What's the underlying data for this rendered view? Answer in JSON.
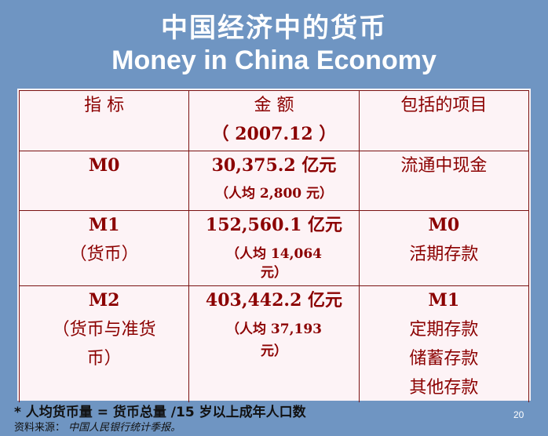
{
  "title_cn": "中国经济中的货币",
  "title_en": "Money in China Economy",
  "table": {
    "header": {
      "col1": "指  标",
      "col2_line1": "金  额",
      "col2_line2": "（ 2007.12 ）",
      "col3": "包括的项目"
    },
    "rows": [
      {
        "indicator": "M0",
        "indicator_sub": "",
        "amount": "30,375.2 亿元",
        "per_capita": "（人均 2,800 元）",
        "items": [
          "流通中现金"
        ]
      },
      {
        "indicator": "M1",
        "indicator_sub": "（货币）",
        "amount": "152,560.1 亿元",
        "per_capita": "（人均 14,064 元）",
        "items": [
          "M0",
          "活期存款"
        ]
      },
      {
        "indicator": "M2",
        "indicator_sub": "（货币与准货币）",
        "amount": "403,442.2 亿元",
        "per_capita": "（人均 37,193 元）",
        "items": [
          "M1",
          "定期存款",
          "储蓄存款",
          "其他存款"
        ]
      }
    ]
  },
  "footnote": "* 人均货币量 = 货币总量 /15 岁以上成年人口数",
  "source_label": "资料来源：",
  "source_name": "中国人民银行统计季报。",
  "page_number": "20",
  "colors": {
    "background": "#6f95c2",
    "panel": "#fdf3f6",
    "table_text": "#8b0000",
    "title_text": "#ffffff"
  }
}
